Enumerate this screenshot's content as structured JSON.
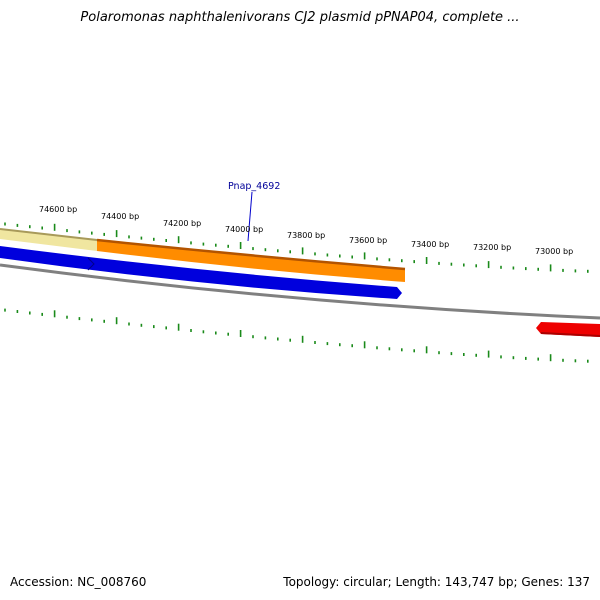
{
  "title": "Polaromonas naphthalenivorans CJ2 plasmid pPNAP04, complete ...",
  "footer": {
    "accession": "Accession: NC_008760",
    "summary": "Topology: circular; Length: 143,747 bp; Genes: 137"
  },
  "colors": {
    "tick": "#1a8a1a",
    "backbone": "#808080",
    "gene_pale": "#f0e6a0",
    "gene_orange": "#ff8c00",
    "gene_blue": "#0000dd",
    "gene_red": "#ee0000",
    "label": "#000099"
  },
  "scale": {
    "major_ticks_bp": [
      74600,
      74400,
      74200,
      74000,
      73800,
      73600,
      73400,
      73200,
      73000
    ],
    "labels": [
      "74600 bp",
      "74400 bp",
      "74200 bp",
      "74000 bp",
      "73800 bp",
      "73600 bp",
      "73400 bp",
      "73200 bp",
      "73000 bp"
    ]
  },
  "features": [
    {
      "name": "Pnap_4692",
      "label": "Pnap_4692",
      "color": "gene_orange",
      "track": "outer"
    }
  ]
}
